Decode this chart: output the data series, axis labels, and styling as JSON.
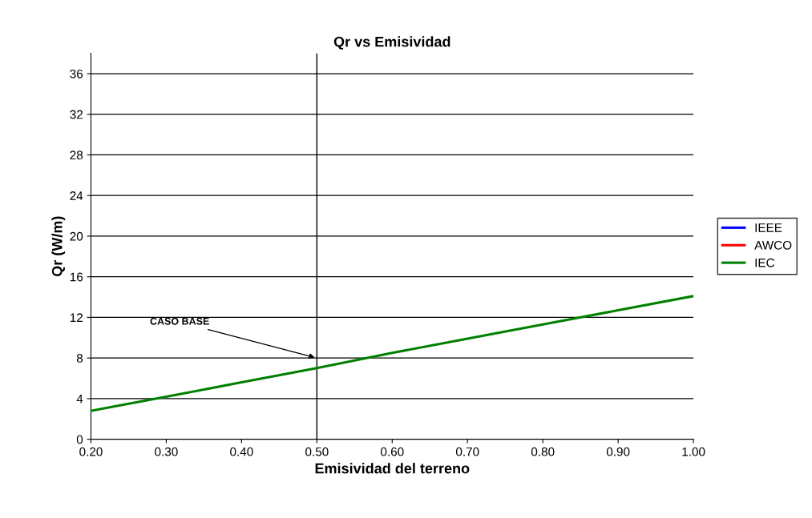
{
  "chart_data": {
    "type": "line",
    "title": "Qr vs Emisividad",
    "xlabel": "Emisividad del terreno",
    "ylabel": "Qr (W/m)",
    "x": [
      0.2,
      0.3,
      0.4,
      0.5,
      0.6,
      0.7,
      0.8,
      0.9,
      1.0
    ],
    "series": [
      {
        "name": "IEEE",
        "color": "#0000ff",
        "values": [
          null,
          null,
          null,
          null,
          null,
          null,
          null,
          null,
          null
        ]
      },
      {
        "name": "AWCO",
        "color": "#ff0000",
        "values": [
          null,
          null,
          null,
          null,
          null,
          null,
          null,
          null,
          null
        ]
      },
      {
        "name": "IEC",
        "color": "#008000",
        "values": [
          2.8,
          4.2,
          5.6,
          7.0,
          8.5,
          9.9,
          11.3,
          12.7,
          14.1
        ]
      }
    ],
    "xlim": [
      0.2,
      1.0
    ],
    "xticks": [
      {
        "value": 0.2,
        "label": "0.20"
      },
      {
        "value": 0.3,
        "label": "0.30"
      },
      {
        "value": 0.4,
        "label": "0.40"
      },
      {
        "value": 0.5,
        "label": "0.50"
      },
      {
        "value": 0.6,
        "label": "0.60"
      },
      {
        "value": 0.7,
        "label": "0.70"
      },
      {
        "value": 0.8,
        "label": "0.80"
      },
      {
        "value": 0.9,
        "label": "0.90"
      },
      {
        "value": 1.0,
        "label": "1.00"
      }
    ],
    "ylim": [
      0,
      38
    ],
    "yticks": [
      0,
      4,
      8,
      12,
      16,
      20,
      24,
      28,
      32,
      36
    ],
    "ref_lines": [
      {
        "axis": "x",
        "value": 0.5,
        "color": "#000000"
      }
    ],
    "annotations": [
      {
        "text": "CASO BASE",
        "x": 0.5,
        "y": 8
      }
    ],
    "grid": "y",
    "legend": "right",
    "marker": "none",
    "line_style": "solid"
  }
}
